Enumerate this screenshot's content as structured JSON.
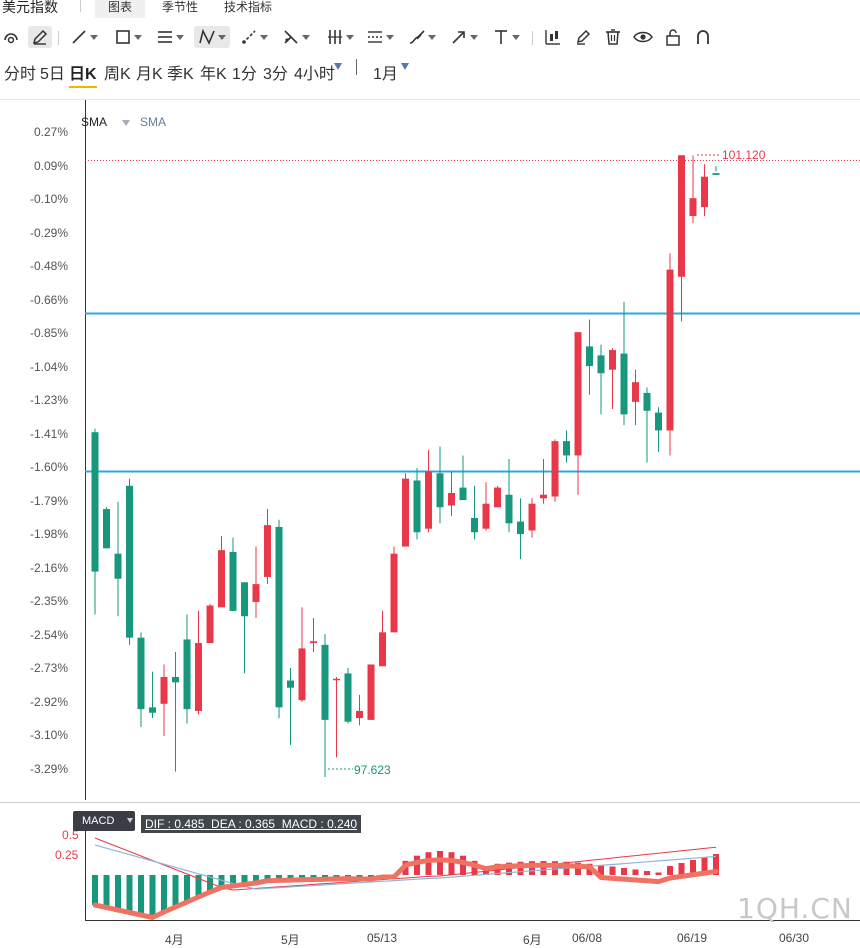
{
  "app": {
    "title": "美元指数"
  },
  "tabs": [
    {
      "label": "图表",
      "active": true
    },
    {
      "label": "季节性",
      "active": false
    },
    {
      "label": "技术指标",
      "active": false
    }
  ],
  "toolbar": {
    "icons": [
      "magnet-icon",
      "pencil-icon",
      "line-icon",
      "rectangle-icon",
      "horizontal-lines-icon",
      "zigzag-icon",
      "arrow-line-icon",
      "cross-line-icon",
      "vertical-bars-icon",
      "channel-icon",
      "brush-icon",
      "arrow-icon",
      "text-icon",
      "candle-icon",
      "highlighter-icon",
      "trash-icon",
      "eye-icon",
      "unlock-icon",
      "magnet-u-icon"
    ]
  },
  "periods": {
    "items": [
      "分时",
      "5日",
      "日K",
      "周K",
      "月K",
      "季K",
      "年K",
      "1分",
      "3分",
      "4小时"
    ],
    "active": "日K",
    "range": "1月"
  },
  "chart": {
    "y_labels": [
      "0.27%",
      "0.09%",
      "-0.10%",
      "-0.29%",
      "-0.48%",
      "-0.66%",
      "-0.85%",
      "-1.04%",
      "-1.23%",
      "-1.41%",
      "-1.60%",
      "-1.79%",
      "-1.98%",
      "-2.16%",
      "-2.35%",
      "-2.54%",
      "-2.73%",
      "-2.92%",
      "-3.10%",
      "-3.29%"
    ],
    "sma_label_1": "SMA",
    "sma_label_2": "SMA",
    "high_label": "101.120",
    "low_label": "97.623",
    "x_labels": [
      "4月",
      "5月",
      "05/13",
      "6月",
      "06/08",
      "06/19",
      "06/30"
    ],
    "up_color": "#e8384a",
    "down_color": "#17977c",
    "hline_color": "#2aa8df",
    "candles": [
      [
        -1.4,
        -2.18,
        -2.42,
        -1.38
      ],
      [
        -1.83,
        -2.05,
        -2.03,
        -1.82
      ],
      [
        -2.08,
        -2.22,
        -2.43,
        -1.79
      ],
      [
        -1.7,
        -2.55,
        -2.59,
        -1.66
      ],
      [
        -2.55,
        -2.95,
        -3.05,
        -2.52
      ],
      [
        -2.94,
        -2.97,
        -3.0,
        -2.74
      ],
      [
        -2.92,
        -2.77,
        -3.1,
        -2.7
      ],
      [
        -2.77,
        -2.8,
        -3.3,
        -2.63
      ],
      [
        -2.56,
        -2.95,
        -3.03,
        -2.42
      ],
      [
        -2.96,
        -2.58,
        -2.98,
        -2.4
      ],
      [
        -2.58,
        -2.37,
        -2.58,
        -2.36
      ],
      [
        -2.38,
        -2.06,
        -2.38,
        -1.98
      ],
      [
        -2.07,
        -2.4,
        -2.4,
        -1.99
      ],
      [
        -2.24,
        -2.43,
        -2.75,
        -2.24
      ],
      [
        -2.35,
        -2.25,
        -2.44,
        -2.04
      ],
      [
        -2.21,
        -1.92,
        -2.25,
        -1.83
      ],
      [
        -1.93,
        -2.94,
        -3.0,
        -1.89
      ],
      [
        -2.79,
        -2.83,
        -3.15,
        -2.72
      ],
      [
        -2.9,
        -2.61,
        -2.91,
        -2.38
      ],
      [
        -2.58,
        -2.57,
        -2.63,
        -2.44
      ],
      [
        -2.59,
        -3.01,
        -3.33,
        -2.53
      ],
      [
        -2.78,
        -2.78,
        -3.22,
        -2.77
      ],
      [
        -2.75,
        -3.02,
        -3.03,
        -2.72
      ],
      [
        -3.0,
        -2.96,
        -3.04,
        -2.87
      ],
      [
        -3.01,
        -2.7,
        -3.01,
        -2.7
      ],
      [
        -2.71,
        -2.52,
        -2.71,
        -2.4
      ],
      [
        -2.52,
        -2.08,
        -2.52,
        -2.04
      ],
      [
        -2.04,
        -1.66,
        -2.04,
        -1.63
      ],
      [
        -1.67,
        -1.96,
        -2.0,
        -1.6
      ],
      [
        -1.94,
        -1.62,
        -1.96,
        -1.5
      ],
      [
        -1.63,
        -1.82,
        -1.91,
        -1.48
      ],
      [
        -1.81,
        -1.74,
        -1.87,
        -1.62
      ],
      [
        -1.71,
        -1.78,
        -1.78,
        -1.53
      ],
      [
        -1.88,
        -1.96,
        -2.0,
        -1.7
      ],
      [
        -1.94,
        -1.8,
        -1.95,
        -1.68
      ],
      [
        -1.82,
        -1.71,
        -1.82,
        -1.7
      ],
      [
        -1.75,
        -1.91,
        -1.96,
        -1.55
      ],
      [
        -1.9,
        -1.97,
        -2.11,
        -1.77
      ],
      [
        -1.95,
        -1.8,
        -1.99,
        -1.77
      ],
      [
        -1.77,
        -1.75,
        -1.8,
        -1.55
      ],
      [
        -1.76,
        -1.45,
        -1.79,
        -1.44
      ],
      [
        -1.45,
        -1.53,
        -1.57,
        -1.39
      ],
      [
        -1.53,
        -0.84,
        -1.75,
        -0.84
      ],
      [
        -0.92,
        -1.03,
        -1.19,
        -0.77
      ],
      [
        -0.97,
        -1.07,
        -1.3,
        -0.91
      ],
      [
        -1.05,
        -0.94,
        -1.27,
        -0.93
      ],
      [
        -0.96,
        -1.3,
        -1.36,
        -0.67
      ],
      [
        -1.23,
        -1.12,
        -1.36,
        -1.05
      ],
      [
        -1.18,
        -1.28,
        -1.57,
        -1.15
      ],
      [
        -1.29,
        -1.39,
        -1.51,
        -1.26
      ],
      [
        -1.39,
        -0.49,
        -1.53,
        -0.4
      ],
      [
        -0.53,
        0.15,
        -0.78,
        0.15
      ],
      [
        -0.19,
        -0.09,
        -0.23,
        0.15
      ],
      [
        -0.14,
        0.03,
        -0.19,
        0.1
      ],
      [
        0.05,
        0.04,
        0.06,
        0.09
      ]
    ]
  }
}
